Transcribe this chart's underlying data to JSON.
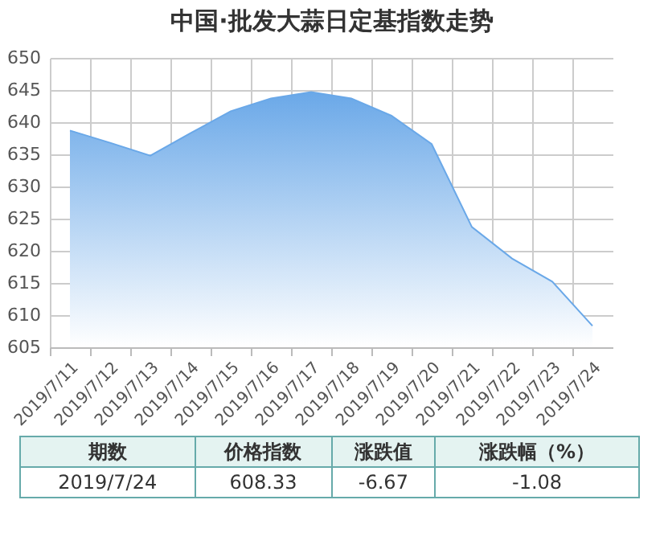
{
  "chart_data": {
    "type": "area",
    "title": "中国·批发大蒜日定基指数走势",
    "categories": [
      "2019/7/11",
      "2019/7/12",
      "2019/7/13",
      "2019/7/14",
      "2019/7/15",
      "2019/7/16",
      "2019/7/17",
      "2019/7/18",
      "2019/7/19",
      "2019/7/20",
      "2019/7/21",
      "2019/7/22",
      "2019/7/23",
      "2019/7/24"
    ],
    "series": [
      {
        "color": "#6aa8e8",
        "values": [
          638.7,
          636.8,
          634.8,
          638.3,
          641.7,
          643.7,
          644.7,
          643.7,
          641,
          636.6,
          623.7,
          618.8,
          615.2,
          608.33
        ]
      }
    ],
    "ylim": [
      605,
      650
    ],
    "yticks": [
      605,
      610,
      615,
      620,
      625,
      630,
      635,
      640,
      645,
      650
    ],
    "grid": true,
    "annotations": [
      "期数",
      "价格指数",
      "涨跌值",
      "涨跌幅（%）",
      "2019/7/24",
      "608.33",
      "-6.67",
      "-1.08"
    ]
  }
}
